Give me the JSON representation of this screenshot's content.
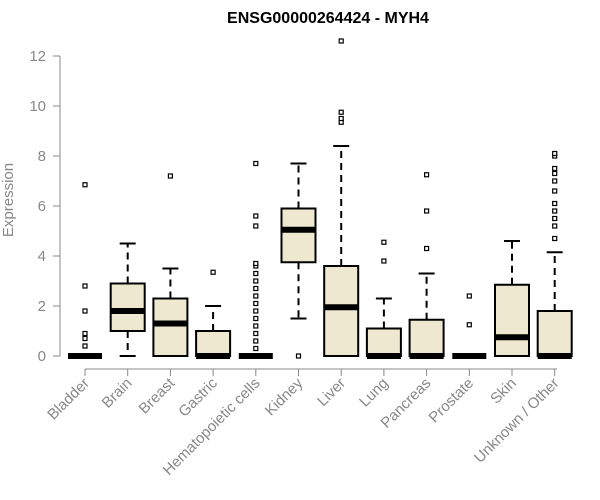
{
  "chart_data": {
    "type": "box",
    "title": "ENSG00000264424 - MYH4",
    "ylabel": "Expression",
    "xlabel": "",
    "ylim": [
      0,
      12.5
    ],
    "yticks": [
      0,
      2,
      4,
      6,
      8,
      10,
      12
    ],
    "colors": {
      "box_fill": "#eee8d0",
      "stroke": "#000000",
      "axis_text": "#888888"
    },
    "categories": [
      "Bladder",
      "Brain",
      "Breast",
      "Gastric",
      "Hematopoietic cells",
      "Kidney",
      "Liver",
      "Lung",
      "Pancreas",
      "Prostate",
      "Skin",
      "Unknown / Other"
    ],
    "boxes": [
      {
        "q1": 0,
        "median": 0,
        "q3": 0,
        "whisker_low": 0,
        "whisker_high": 0,
        "outliers": [
          0.4,
          0.7,
          0.9,
          1.8,
          2.8,
          6.85
        ]
      },
      {
        "q1": 1.0,
        "median": 1.8,
        "q3": 2.9,
        "whisker_low": 0,
        "whisker_high": 4.5,
        "outliers": []
      },
      {
        "q1": 0,
        "median": 1.3,
        "q3": 2.3,
        "whisker_low": 0,
        "whisker_high": 3.5,
        "outliers": [
          7.2
        ]
      },
      {
        "q1": 0,
        "median": 0,
        "q3": 1.0,
        "whisker_low": 0,
        "whisker_high": 2.0,
        "outliers": [
          3.35
        ]
      },
      {
        "q1": 0,
        "median": 0,
        "q3": 0,
        "whisker_low": 0,
        "whisker_high": 0,
        "outliers": [
          0.3,
          0.6,
          0.9,
          1.2,
          1.5,
          1.8,
          2.1,
          2.4,
          2.7,
          3.0,
          3.3,
          3.6,
          3.7,
          5.2,
          5.6,
          7.7
        ]
      },
      {
        "q1": 3.75,
        "median": 5.05,
        "q3": 5.9,
        "whisker_low": 1.5,
        "whisker_high": 7.7,
        "outliers": [
          0
        ]
      },
      {
        "q1": 0,
        "median": 1.95,
        "q3": 3.6,
        "whisker_low": 0,
        "whisker_high": 8.4,
        "outliers": [
          9.35,
          9.5,
          9.75,
          12.6
        ]
      },
      {
        "q1": 0,
        "median": 0,
        "q3": 1.1,
        "whisker_low": 0,
        "whisker_high": 2.3,
        "outliers": [
          3.8,
          4.55
        ]
      },
      {
        "q1": 0,
        "median": 0,
        "q3": 1.45,
        "whisker_low": 0,
        "whisker_high": 3.3,
        "outliers": [
          4.3,
          5.8,
          7.25
        ]
      },
      {
        "q1": 0,
        "median": 0,
        "q3": 0,
        "whisker_low": 0,
        "whisker_high": 0,
        "outliers": [
          1.25,
          2.4
        ]
      },
      {
        "q1": 0,
        "median": 0.75,
        "q3": 2.85,
        "whisker_low": 0,
        "whisker_high": 4.6,
        "outliers": []
      },
      {
        "q1": 0,
        "median": 0,
        "q3": 1.8,
        "whisker_low": 0,
        "whisker_high": 4.15,
        "outliers": [
          4.7,
          5.2,
          5.5,
          5.8,
          6.1,
          6.6,
          7.0,
          7.3,
          7.5,
          8.0,
          8.1
        ]
      }
    ]
  }
}
